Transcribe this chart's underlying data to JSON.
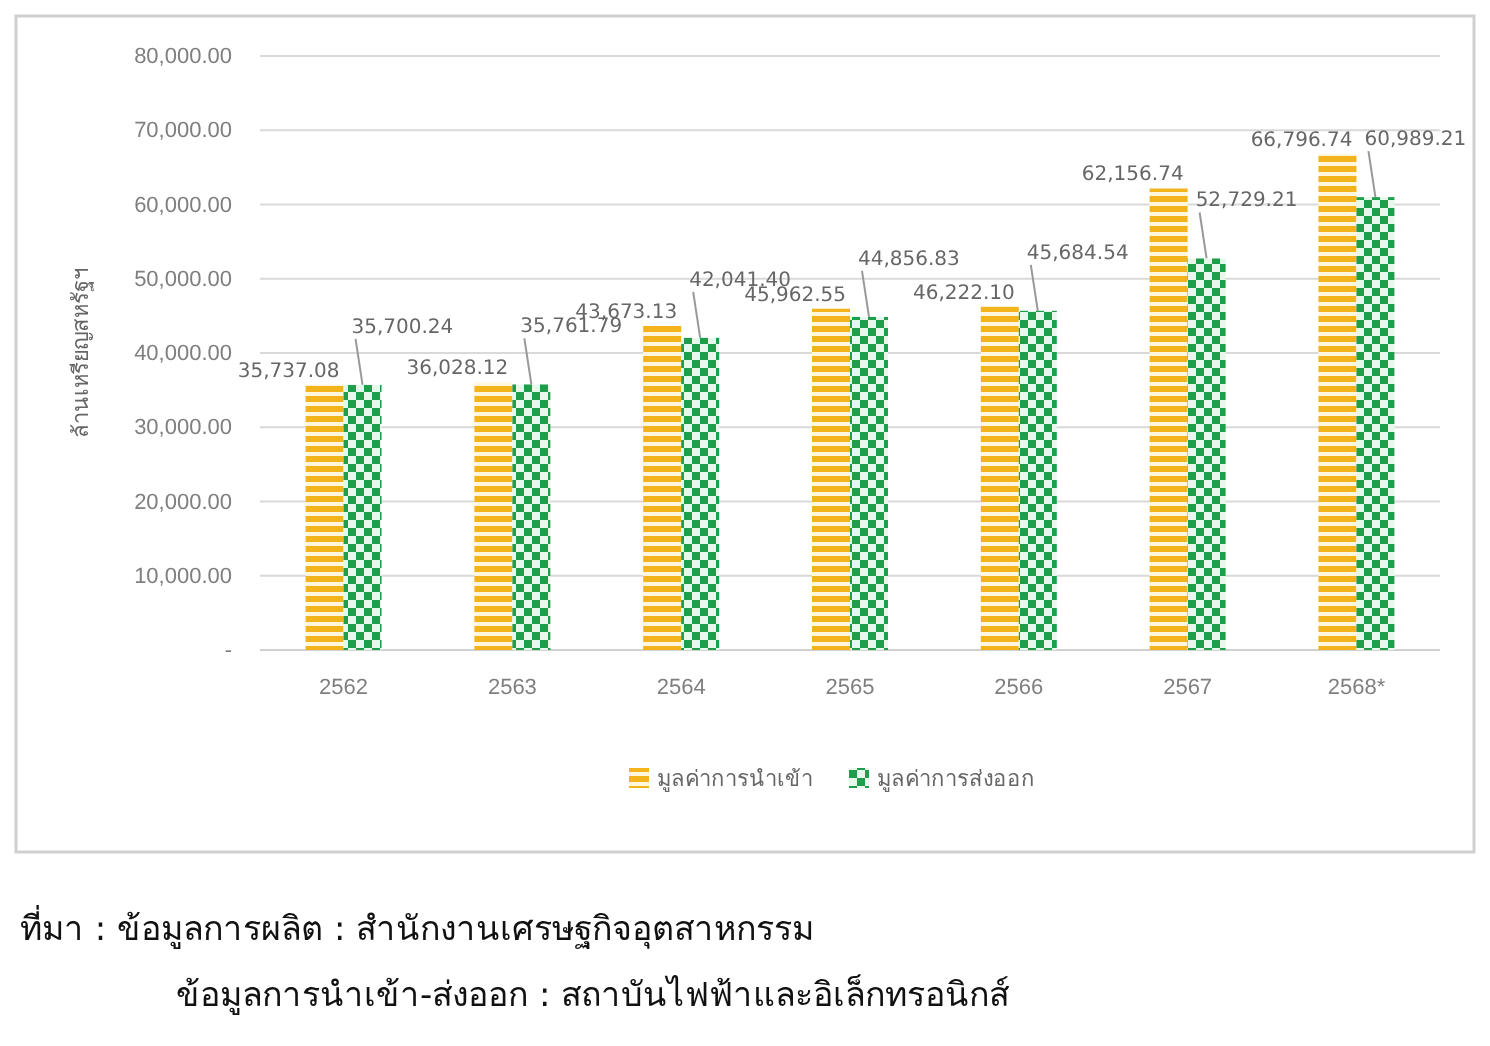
{
  "chart_data": {
    "type": "bar",
    "ylabel": "ล้านเหรียญสหรัฐฯ",
    "categories": [
      "2562",
      "2563",
      "2564",
      "2565",
      "2566",
      "2567",
      "2568*"
    ],
    "series": [
      {
        "name": "มูลค่าการนำเข้า",
        "color": "#f2b31b",
        "values": [
          35737.08,
          36028.12,
          43673.13,
          45962.55,
          46222.1,
          62156.74,
          66796.74
        ],
        "value_labels": [
          "35,737.08",
          "36,028.12",
          "43,673.13",
          "45,962.55",
          "46,222.10",
          "62,156.74",
          "66,796.74"
        ]
      },
      {
        "name": "มูลค่าการส่งออก",
        "color": "#1e9e4a",
        "values": [
          35700.24,
          35761.79,
          42041.4,
          44856.83,
          45684.54,
          52729.21,
          60989.21
        ],
        "value_labels": [
          "35,700.24",
          "35,761.79",
          "42,041.40",
          "44,856.83",
          "45,684.54",
          "52,729.21",
          "60,989.21"
        ]
      }
    ],
    "ylim": [
      0,
      80000
    ],
    "yticks": [
      {
        "value": 0,
        "label": "-"
      },
      {
        "value": 10000,
        "label": "10,000.00"
      },
      {
        "value": 20000,
        "label": "20,000.00"
      },
      {
        "value": 30000,
        "label": "30,000.00"
      },
      {
        "value": 40000,
        "label": "40,000.00"
      },
      {
        "value": 50000,
        "label": "50,000.00"
      },
      {
        "value": 60000,
        "label": "60,000.00"
      },
      {
        "value": 70000,
        "label": "70,000.00"
      },
      {
        "value": 80000,
        "label": "80,000.00"
      }
    ],
    "grid": "y",
    "legend": "bottom",
    "annotations": [
      "ที่มา : ข้อมูลการผลิต : สำนักงานเศรษฐกิจอุตสาหกรรม",
      "ข้อมูลการนำเข้า-ส่งออก : สถาบันไฟฟ้าและอิเล็กทรอนิกส์"
    ]
  }
}
